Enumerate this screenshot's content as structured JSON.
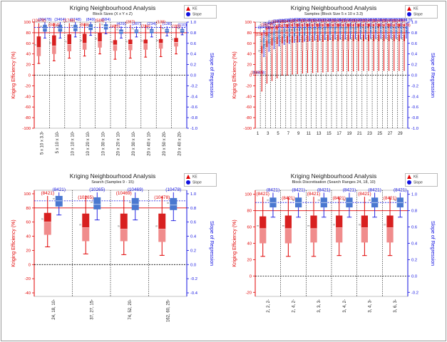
{
  "legend": {
    "ke_label": "KE",
    "slope_label": "Slope"
  },
  "colors": {
    "ke": "#e00000",
    "slope": "#1010e0",
    "box_light": "#f08c8c",
    "box_dark": "#d82020",
    "slope_box": "#4a78d0"
  },
  "chart_data": [
    {
      "type": "boxplot",
      "title": "Kriging Neighbourhood Analysis",
      "subtitle": "Block Sizes (X x Y x Z)",
      "ylabel_left": "Kriging Efficiency (%)",
      "ylabel_right": "Slope of Regression",
      "ylim_left": [
        -100,
        100
      ],
      "ylim_right": [
        -1.0,
        1.0
      ],
      "left_ticks": [
        "-100",
        "-80",
        "-60",
        "-40",
        "-20",
        "0",
        "20",
        "40",
        "60",
        "80",
        "100"
      ],
      "right_ticks": [
        "-1.0",
        "-0.8",
        "-0.6",
        "-0.4",
        "-0.2",
        "0.0",
        "0.2",
        "0.4",
        "0.6",
        "0.8",
        "1.0"
      ],
      "ke_ref": 80,
      "slope_ref": 0.9,
      "categories": [
        "5 x 10 x 3.3-",
        "5 x 10 x 10-",
        "10 x 10 x 10-",
        "10 x 20 x 10-",
        "10 x 30 x 10-",
        "20 x 20 x 10-",
        "20 x 30 x 10-",
        "20 x 40 x 10-",
        "20 x 50 x 20-",
        "20 x 40 x 20-"
      ],
      "slope_labels": [
        "(10478)",
        "(3464)",
        "(1748)",
        "(849)",
        "(584)",
        "(429)",
        "(287)",
        "(234)",
        "(138)",
        "(110)"
      ],
      "ke_labels": [
        "(10478)",
        "(3464)",
        "(1748)",
        "(849)",
        "(584)",
        "(429)",
        "(287)",
        "(234)",
        "(138)",
        "(110)"
      ],
      "ke": [
        {
          "min": 22,
          "q1": 36,
          "median": 52,
          "q3": 73,
          "max": 98
        },
        {
          "min": 27,
          "q1": 40,
          "median": 55,
          "q3": 75,
          "max": 98
        },
        {
          "min": 32,
          "q1": 45,
          "median": 58,
          "q3": 77,
          "max": 98
        },
        {
          "min": 36,
          "q1": 48,
          "median": 60,
          "q3": 78,
          "max": 98
        },
        {
          "min": 40,
          "q1": 52,
          "median": 63,
          "q3": 80,
          "max": 98
        },
        {
          "min": 30,
          "q1": 46,
          "median": 57,
          "q3": 66,
          "max": 95
        },
        {
          "min": 32,
          "q1": 47,
          "median": 58,
          "q3": 67,
          "max": 95
        },
        {
          "min": 34,
          "q1": 48,
          "median": 59,
          "q3": 67,
          "max": 95
        },
        {
          "min": 35,
          "q1": 50,
          "median": 60,
          "q3": 68,
          "max": 95
        },
        {
          "min": 40,
          "q1": 54,
          "median": 62,
          "q3": 70,
          "max": 95
        }
      ],
      "slope": [
        {
          "min": 0.7,
          "q1": 0.82,
          "median": 0.88,
          "q3": 0.95,
          "max": 1.0
        },
        {
          "min": 0.7,
          "q1": 0.82,
          "median": 0.88,
          "q3": 0.95,
          "max": 1.0
        },
        {
          "min": 0.72,
          "q1": 0.83,
          "median": 0.89,
          "q3": 0.95,
          "max": 1.0
        },
        {
          "min": 0.75,
          "q1": 0.85,
          "median": 0.9,
          "q3": 0.96,
          "max": 1.0
        },
        {
          "min": 0.78,
          "q1": 0.86,
          "median": 0.91,
          "q3": 0.96,
          "max": 1.0
        },
        {
          "min": 0.7,
          "q1": 0.78,
          "median": 0.82,
          "q3": 0.86,
          "max": 0.92
        },
        {
          "min": 0.72,
          "q1": 0.79,
          "median": 0.83,
          "q3": 0.86,
          "max": 0.92
        },
        {
          "min": 0.72,
          "q1": 0.79,
          "median": 0.83,
          "q3": 0.87,
          "max": 0.92
        },
        {
          "min": 0.74,
          "q1": 0.8,
          "median": 0.84,
          "q3": 0.87,
          "max": 0.92
        },
        {
          "min": 0.76,
          "q1": 0.8,
          "median": 0.84,
          "q3": 0.87,
          "max": 0.9
        }
      ]
    },
    {
      "type": "boxplot",
      "title": "Kriging Neighbourhood Analysis",
      "subtitle": "Samples (Block Size 5 x 10 x 3.3)",
      "ylabel_left": "Kriging Efficiency (%)",
      "ylabel_right": "Slope of Regression",
      "ylim_left": [
        -100,
        100
      ],
      "ylim_right": [
        -1.0,
        1.0
      ],
      "left_ticks": [
        "-100",
        "-80",
        "-60",
        "-40",
        "-20",
        "0",
        "20",
        "40",
        "60",
        "80",
        "100"
      ],
      "right_ticks": [
        "-1.0",
        "-0.8",
        "-0.6",
        "-0.4",
        "-0.2",
        "0.0",
        "0.2",
        "0.4",
        "0.6",
        "0.8",
        "1.0"
      ],
      "ke_ref": 80,
      "slope_ref": 0.9,
      "categories": [
        "1",
        "2",
        "3",
        "4",
        "5",
        "6",
        "7",
        "8",
        "9",
        "10",
        "11",
        "12",
        "13",
        "14",
        "15",
        "16",
        "17",
        "18",
        "19",
        "20",
        "21",
        "22",
        "23",
        "24",
        "25",
        "26",
        "27",
        "28",
        "29",
        "30"
      ],
      "tick_labels": [
        "1",
        "",
        "3",
        "",
        "5",
        "",
        "7",
        "",
        "9",
        "",
        "11",
        "",
        "13",
        "",
        "15",
        "",
        "17",
        "",
        "19",
        "",
        "21",
        "",
        "23",
        "",
        "25",
        "",
        "27",
        "",
        "29",
        ""
      ],
      "slope_labels": [
        "(10478)",
        "(10478)",
        "(10478)",
        "(10478)",
        "(10478)",
        "(10478)",
        "(10478)",
        "(10478)",
        "(10478)",
        "(10478)",
        "(10478)",
        "(10478)",
        "(10478)",
        "(10478)",
        "(10478)",
        "(10478)",
        "(10478)",
        "(10478)",
        "(10478)",
        "(10478)",
        "(10478)",
        "(10478)",
        "(10478)",
        "(10478)",
        "(10478)",
        "(10478)",
        "(10478)",
        "(10478)",
        "(10478)",
        "(10478)"
      ],
      "ke_labels": [
        "(10478)",
        "(10478)",
        "(10478)",
        "(10478)",
        "(10478)",
        "(10478)",
        "(10478)",
        "(10478)",
        "(10478)",
        "(10478)",
        "(10478)",
        "(10478)",
        "(10478)",
        "(10478)",
        "(10478)",
        "(10478)",
        "(10478)",
        "(10478)",
        "(10478)",
        "(10478)",
        "(10478)",
        "(10478)",
        "(10478)",
        "(10478)",
        "(10478)",
        "(10478)",
        "(10478)",
        "(10478)",
        "(10478)",
        "(10478)"
      ],
      "ke": [
        {
          "min": 0,
          "q1": 0,
          "median": 0,
          "q3": 0,
          "max": 0
        },
        {
          "min": -30,
          "q1": 25,
          "median": 40,
          "q3": 55,
          "max": 80
        },
        {
          "min": -15,
          "q1": 35,
          "median": 52,
          "q3": 65,
          "max": 90
        },
        {
          "min": -10,
          "q1": 40,
          "median": 55,
          "q3": 70,
          "max": 92
        },
        {
          "min": -5,
          "q1": 42,
          "median": 58,
          "q3": 72,
          "max": 95
        },
        {
          "min": 0,
          "q1": 44,
          "median": 59,
          "q3": 73,
          "max": 96
        },
        {
          "min": 0,
          "q1": 45,
          "median": 60,
          "q3": 74,
          "max": 96
        },
        {
          "min": 2,
          "q1": 45,
          "median": 60,
          "q3": 74,
          "max": 97
        },
        {
          "min": 3,
          "q1": 46,
          "median": 61,
          "q3": 75,
          "max": 97
        },
        {
          "min": 4,
          "q1": 46,
          "median": 61,
          "q3": 75,
          "max": 97
        },
        {
          "min": 5,
          "q1": 47,
          "median": 62,
          "q3": 75,
          "max": 97
        },
        {
          "min": 5,
          "q1": 47,
          "median": 62,
          "q3": 75,
          "max": 97
        },
        {
          "min": 6,
          "q1": 47,
          "median": 62,
          "q3": 76,
          "max": 97
        },
        {
          "min": 6,
          "q1": 47,
          "median": 62,
          "q3": 76,
          "max": 97
        },
        {
          "min": 7,
          "q1": 48,
          "median": 63,
          "q3": 76,
          "max": 97
        },
        {
          "min": 7,
          "q1": 48,
          "median": 63,
          "q3": 76,
          "max": 97
        },
        {
          "min": 8,
          "q1": 48,
          "median": 63,
          "q3": 76,
          "max": 97
        },
        {
          "min": 8,
          "q1": 48,
          "median": 63,
          "q3": 76,
          "max": 97
        },
        {
          "min": 8,
          "q1": 48,
          "median": 63,
          "q3": 76,
          "max": 97
        },
        {
          "min": 8,
          "q1": 48,
          "median": 63,
          "q3": 76,
          "max": 97
        },
        {
          "min": 9,
          "q1": 48,
          "median": 63,
          "q3": 76,
          "max": 97
        },
        {
          "min": 9,
          "q1": 48,
          "median": 63,
          "q3": 76,
          "max": 97
        },
        {
          "min": 9,
          "q1": 48,
          "median": 63,
          "q3": 76,
          "max": 97
        },
        {
          "min": 9,
          "q1": 48,
          "median": 63,
          "q3": 76,
          "max": 97
        },
        {
          "min": 9,
          "q1": 48,
          "median": 63,
          "q3": 76,
          "max": 97
        },
        {
          "min": 9,
          "q1": 48,
          "median": 63,
          "q3": 76,
          "max": 97
        },
        {
          "min": 9,
          "q1": 48,
          "median": 63,
          "q3": 76,
          "max": 97
        },
        {
          "min": 9,
          "q1": 48,
          "median": 63,
          "q3": 76,
          "max": 97
        },
        {
          "min": 9,
          "q1": 48,
          "median": 63,
          "q3": 76,
          "max": 97
        },
        {
          "min": 9,
          "q1": 48,
          "median": 63,
          "q3": 76,
          "max": 97
        }
      ],
      "slope": [
        {
          "min": 0,
          "q1": 0,
          "median": 0,
          "q3": 0,
          "max": 0
        },
        {
          "min": 0.35,
          "q1": 0.5,
          "median": 0.6,
          "q3": 0.7,
          "max": 0.85
        },
        {
          "min": 0.45,
          "q1": 0.6,
          "median": 0.7,
          "q3": 0.78,
          "max": 0.92
        },
        {
          "min": 0.5,
          "q1": 0.65,
          "median": 0.74,
          "q3": 0.82,
          "max": 0.95
        },
        {
          "min": 0.55,
          "q1": 0.68,
          "median": 0.77,
          "q3": 0.85,
          "max": 0.97
        },
        {
          "min": 0.58,
          "q1": 0.7,
          "median": 0.79,
          "q3": 0.87,
          "max": 0.98
        },
        {
          "min": 0.6,
          "q1": 0.72,
          "median": 0.8,
          "q3": 0.88,
          "max": 0.98
        },
        {
          "min": 0.62,
          "q1": 0.73,
          "median": 0.81,
          "q3": 0.89,
          "max": 0.99
        },
        {
          "min": 0.63,
          "q1": 0.74,
          "median": 0.82,
          "q3": 0.89,
          "max": 0.99
        },
        {
          "min": 0.64,
          "q1": 0.75,
          "median": 0.83,
          "q3": 0.9,
          "max": 0.99
        },
        {
          "min": 0.65,
          "q1": 0.76,
          "median": 0.83,
          "q3": 0.9,
          "max": 0.99
        },
        {
          "min": 0.66,
          "q1": 0.76,
          "median": 0.84,
          "q3": 0.9,
          "max": 0.99
        },
        {
          "min": 0.66,
          "q1": 0.77,
          "median": 0.84,
          "q3": 0.91,
          "max": 0.99
        },
        {
          "min": 0.67,
          "q1": 0.77,
          "median": 0.84,
          "q3": 0.91,
          "max": 0.99
        },
        {
          "min": 0.67,
          "q1": 0.77,
          "median": 0.85,
          "q3": 0.91,
          "max": 0.99
        },
        {
          "min": 0.68,
          "q1": 0.78,
          "median": 0.85,
          "q3": 0.91,
          "max": 0.99
        },
        {
          "min": 0.68,
          "q1": 0.78,
          "median": 0.85,
          "q3": 0.91,
          "max": 0.99
        },
        {
          "min": 0.68,
          "q1": 0.78,
          "median": 0.85,
          "q3": 0.91,
          "max": 0.99
        },
        {
          "min": 0.69,
          "q1": 0.78,
          "median": 0.85,
          "q3": 0.91,
          "max": 0.99
        },
        {
          "min": 0.69,
          "q1": 0.78,
          "median": 0.85,
          "q3": 0.91,
          "max": 0.99
        },
        {
          "min": 0.69,
          "q1": 0.79,
          "median": 0.86,
          "q3": 0.92,
          "max": 0.99
        },
        {
          "min": 0.69,
          "q1": 0.79,
          "median": 0.86,
          "q3": 0.92,
          "max": 0.99
        },
        {
          "min": 0.7,
          "q1": 0.79,
          "median": 0.86,
          "q3": 0.92,
          "max": 0.99
        },
        {
          "min": 0.7,
          "q1": 0.79,
          "median": 0.86,
          "q3": 0.92,
          "max": 0.99
        },
        {
          "min": 0.7,
          "q1": 0.79,
          "median": 0.86,
          "q3": 0.92,
          "max": 0.99
        },
        {
          "min": 0.7,
          "q1": 0.79,
          "median": 0.86,
          "q3": 0.92,
          "max": 0.99
        },
        {
          "min": 0.7,
          "q1": 0.79,
          "median": 0.86,
          "q3": 0.92,
          "max": 0.99
        },
        {
          "min": 0.7,
          "q1": 0.79,
          "median": 0.86,
          "q3": 0.92,
          "max": 0.99
        },
        {
          "min": 0.7,
          "q1": 0.79,
          "median": 0.86,
          "q3": 0.92,
          "max": 0.99
        },
        {
          "min": 0.7,
          "q1": 0.79,
          "median": 0.86,
          "q3": 0.92,
          "max": 0.99
        }
      ]
    },
    {
      "type": "boxplot",
      "title": "Kriging Neighbourhood Analysis",
      "subtitle": "Search (Samples 9 - 15)",
      "ylabel_left": "Kriging Efficiency (%)",
      "ylabel_right": "Slope of Regression",
      "ylim_left": [
        -45,
        105
      ],
      "ylim_right": [
        -0.45,
        1.05
      ],
      "left_ticks": [
        "-40",
        "-20",
        "0",
        "20",
        "40",
        "60",
        "80",
        "100"
      ],
      "right_ticks": [
        "-0.4",
        "-0.2",
        "0.0",
        "0.2",
        "0.4",
        "0.6",
        "0.8",
        "1.0"
      ],
      "ke_ref": 80,
      "slope_ref": 0.9,
      "categories": [
        "24, 18, 10-",
        "37, 27, 15-",
        "74, 52, 20-",
        "162, 60, 25-"
      ],
      "slope_labels": [
        "(8421)",
        "(10265)",
        "(10469)",
        "(10478)"
      ],
      "ke_labels": [
        "(8421)",
        "(10265)",
        "(10469)",
        "(10478)"
      ],
      "ke": [
        {
          "min": 25,
          "q1": 42,
          "median": 60,
          "q3": 73,
          "max": 97
        },
        {
          "min": 15,
          "q1": 33,
          "median": 52,
          "q3": 72,
          "max": 97
        },
        {
          "min": 14,
          "q1": 33,
          "median": 50,
          "q3": 72,
          "max": 97
        },
        {
          "min": 13,
          "q1": 32,
          "median": 50,
          "q3": 72,
          "max": 97
        }
      ],
      "slope": [
        {
          "min": 0.7,
          "q1": 0.82,
          "median": 0.9,
          "q3": 0.97,
          "max": 1.02
        },
        {
          "min": 0.63,
          "q1": 0.78,
          "median": 0.85,
          "q3": 0.95,
          "max": 1.02
        },
        {
          "min": 0.63,
          "q1": 0.77,
          "median": 0.85,
          "q3": 0.94,
          "max": 1.02
        },
        {
          "min": 0.62,
          "q1": 0.77,
          "median": 0.84,
          "q3": 0.94,
          "max": 1.02
        }
      ]
    },
    {
      "type": "boxplot",
      "title": "Kriging Neighbourhood Analysis",
      "subtitle": "Block Discretisation (Search Ranges 24, 18, 10)",
      "ylabel_left": "Kriging Efficiency (%)",
      "ylabel_right": "Slope of Regression",
      "ylim_left": [
        -25,
        105
      ],
      "ylim_right": [
        -0.25,
        1.05
      ],
      "left_ticks": [
        "-20",
        "0",
        "20",
        "40",
        "60",
        "80",
        "100"
      ],
      "right_ticks": [
        "-0.2",
        "0.0",
        "0.2",
        "0.4",
        "0.6",
        "0.8",
        "1.0"
      ],
      "ke_ref": 80,
      "slope_ref": 0.9,
      "categories": [
        "2, 2, 2-",
        "2, 4, 2-",
        "3, 3, 3-",
        "3, 4, 2-",
        "3, 4, 3-",
        "3, 6, 3-"
      ],
      "slope_labels": [
        "(8421)",
        "(8421)",
        "(8421)",
        "(8421)",
        "(8421)",
        "(8421)"
      ],
      "ke_labels": [
        "(8421)",
        "(8421)",
        "(8421)",
        "(8421)",
        "(8421)",
        "(8421)"
      ],
      "ke": [
        {
          "min": 24,
          "q1": 40,
          "median": 58,
          "q3": 73,
          "max": 97
        },
        {
          "min": 24,
          "q1": 40,
          "median": 58,
          "q3": 74,
          "max": 97
        },
        {
          "min": 24,
          "q1": 41,
          "median": 58,
          "q3": 74,
          "max": 97
        },
        {
          "min": 25,
          "q1": 41,
          "median": 59,
          "q3": 74,
          "max": 97
        },
        {
          "min": 25,
          "q1": 41,
          "median": 59,
          "q3": 74,
          "max": 97
        },
        {
          "min": 25,
          "q1": 41,
          "median": 59,
          "q3": 74,
          "max": 97
        }
      ],
      "slope": [
        {
          "min": 0.72,
          "q1": 0.84,
          "median": 0.9,
          "q3": 0.96,
          "max": 1.02
        },
        {
          "min": 0.72,
          "q1": 0.84,
          "median": 0.9,
          "q3": 0.96,
          "max": 1.02
        },
        {
          "min": 0.72,
          "q1": 0.84,
          "median": 0.9,
          "q3": 0.96,
          "max": 1.02
        },
        {
          "min": 0.72,
          "q1": 0.84,
          "median": 0.9,
          "q3": 0.96,
          "max": 1.02
        },
        {
          "min": 0.72,
          "q1": 0.84,
          "median": 0.9,
          "q3": 0.96,
          "max": 1.02
        },
        {
          "min": 0.72,
          "q1": 0.84,
          "median": 0.9,
          "q3": 0.96,
          "max": 1.02
        }
      ]
    }
  ]
}
